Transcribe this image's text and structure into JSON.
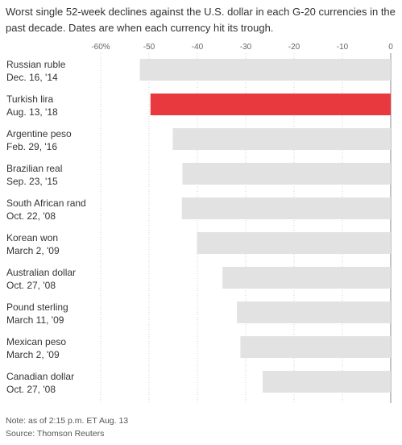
{
  "title": "Worst single 52-week declines against the U.S. dollar in each G-20 currencies in the past decade. Dates are when each currency hit its trough.",
  "note": "Note: as of 2:15 p.m. ET Aug. 13",
  "source": "Source: Thomson Reuters",
  "colors": {
    "bar": "#e2e2e2",
    "highlight": "#e8393f",
    "grid": "#d0d0d0",
    "zero_line": "#888888",
    "text": "#333333"
  },
  "chart_data": {
    "type": "bar",
    "orientation": "horizontal",
    "xlim": [
      -60,
      0
    ],
    "ticks": [
      -60,
      -50,
      -40,
      -30,
      -20,
      -10,
      0
    ],
    "tick_labels": [
      "-60%",
      "-50",
      "-40",
      "-30",
      "-20",
      "-10",
      "0"
    ],
    "grid": true,
    "highlight_index": 1,
    "categories": [
      {
        "name": "Russian ruble",
        "date": "Dec. 16, '14"
      },
      {
        "name": "Turkish lira",
        "date": "Aug. 13, '18"
      },
      {
        "name": "Argentine peso",
        "date": "Feb. 29, '16"
      },
      {
        "name": "Brazilian real",
        "date": "Sep. 23, '15"
      },
      {
        "name": "South African rand",
        "date": "Oct. 22, '08"
      },
      {
        "name": "Korean won",
        "date": "March 2, '09"
      },
      {
        "name": "Australian dollar",
        "date": "Oct. 27, '08"
      },
      {
        "name": "Pound sterling",
        "date": "March 11, '09"
      },
      {
        "name": "Mexican peso",
        "date": "March 2, '09"
      },
      {
        "name": "Canadian dollar",
        "date": "Oct. 27, '08"
      }
    ],
    "values": [
      -51.9,
      -49.7,
      -45.1,
      -43.1,
      -43.2,
      -40.1,
      -34.8,
      -31.8,
      -31.1,
      -26.5
    ]
  }
}
